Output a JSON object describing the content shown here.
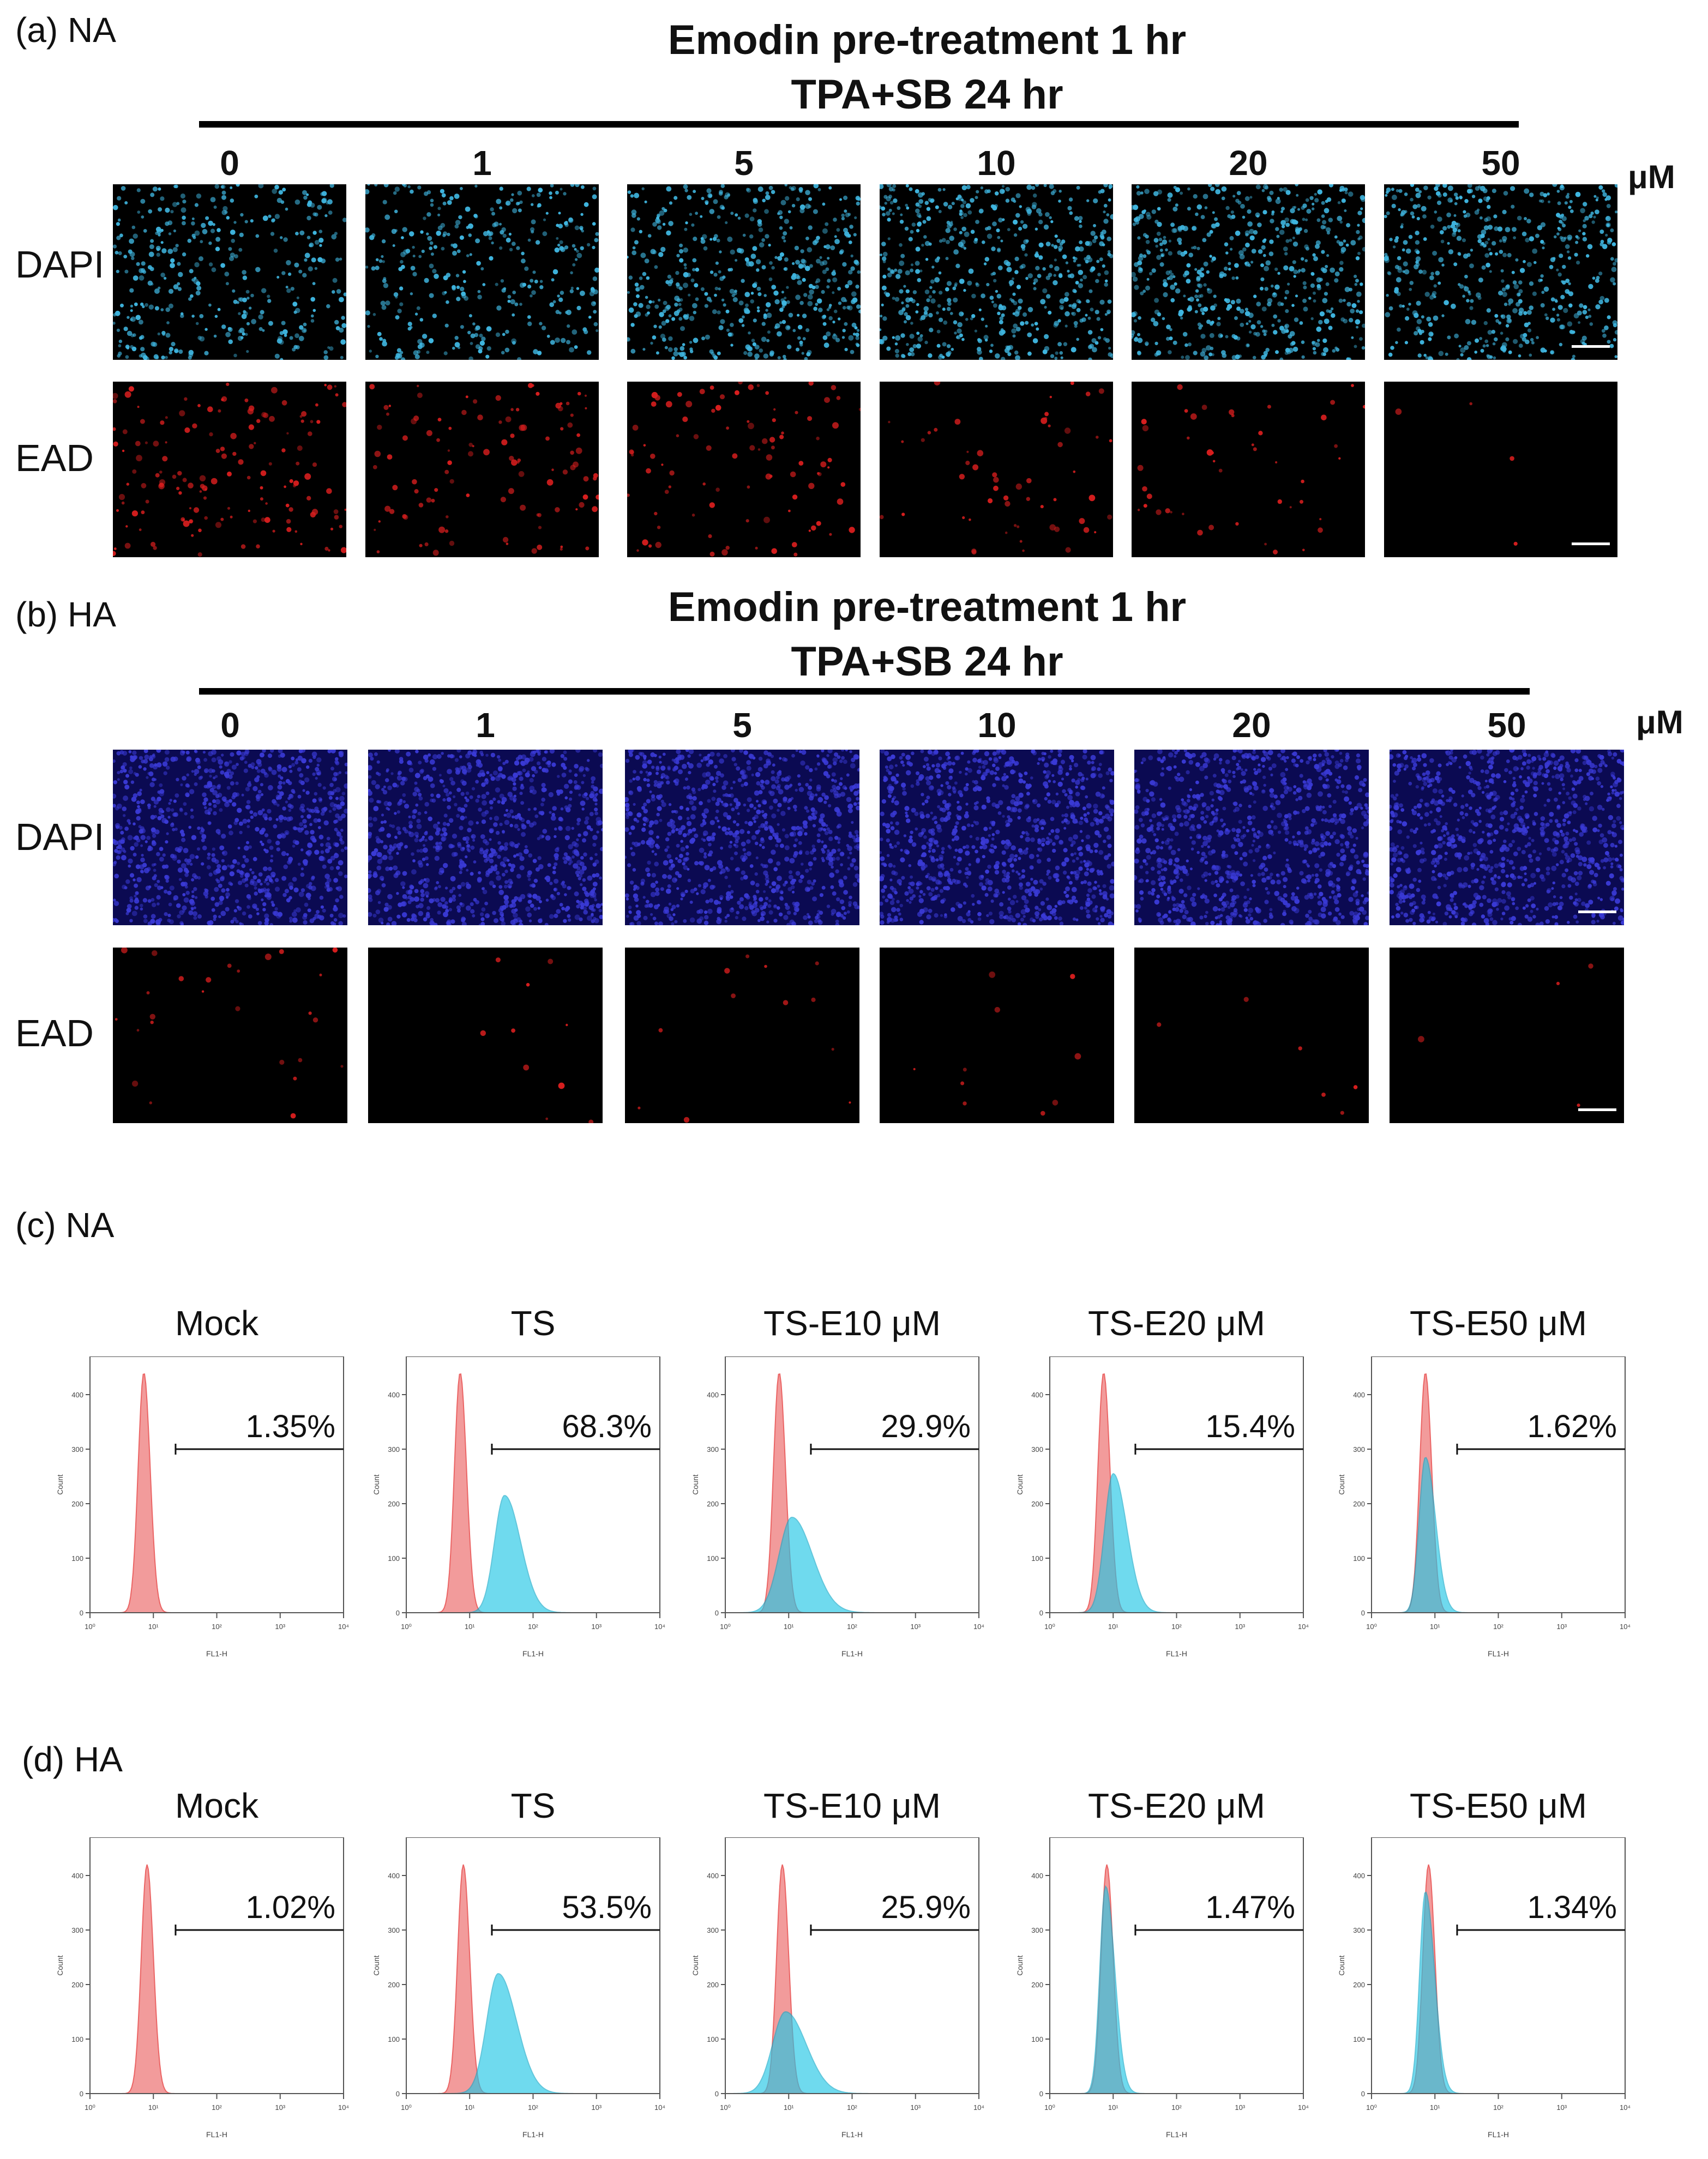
{
  "figure": {
    "panels": {
      "a": {
        "label": "(a) NA",
        "header_line1": "Emodin pre-treatment 1 hr",
        "header_line2": "TPA+SB 24 hr"
      },
      "b": {
        "label": "(b) HA",
        "header_line1": "Emodin pre-treatment 1 hr",
        "header_line2": "TPA+SB 24 hr"
      },
      "c": {
        "label": "(c) NA"
      },
      "d": {
        "label": "(d) HA"
      }
    },
    "concentrations": [
      "0",
      "1",
      "5",
      "10",
      "20",
      "50"
    ],
    "unit": "μM",
    "row_labels": {
      "dapi": "DAPI",
      "ead": "EAD"
    },
    "colors": {
      "dapi_na": "#3fb6e0",
      "dapi_ha": "#3a3ad6",
      "ead": "#d81e1e",
      "mock_fill": "#f08a8a",
      "mock_stroke": "#e84b4b",
      "treated_fill": "#23c7e6",
      "overlap_fill": "#5b8fb0",
      "gate_line": "#111111"
    },
    "flow_axis": {
      "x_label": "FL1-H",
      "y_label": "Count",
      "x_ticks": [
        "10⁰",
        "10¹",
        "10²",
        "10³",
        "10⁴"
      ],
      "y_ticks": [
        "0",
        "100",
        "200",
        "300",
        "400"
      ]
    },
    "flow_titles": [
      "Mock",
      "TS",
      "TS-E10 μM",
      "TS-E20 μM",
      "TS-E50 μM"
    ]
  },
  "chart_data": [
    {
      "type": "histogram",
      "panel": "c",
      "title": "(c) NA",
      "xlabel": "FL1-H",
      "ylabel": "Count",
      "xscale": "log",
      "xlim": [
        1,
        10000
      ],
      "ylim": [
        0,
        450
      ],
      "plots": [
        {
          "title": "Mock",
          "gate_percent": "1.35%",
          "mock_peak_log": 0.85,
          "mock_peak_count": 440,
          "treated": null
        },
        {
          "title": "TS",
          "gate_percent": "68.3%",
          "mock_peak_log": 0.85,
          "mock_peak_count": 440,
          "treated": {
            "peak_log": 1.55,
            "peak_count": 215,
            "spread": 0.35
          }
        },
        {
          "title": "TS-E10 μM",
          "gate_percent": "29.9%",
          "mock_peak_log": 0.85,
          "mock_peak_count": 440,
          "treated": {
            "peak_log": 1.05,
            "peak_count": 175,
            "spread": 0.45
          }
        },
        {
          "title": "TS-E20 μM",
          "gate_percent": "15.4%",
          "mock_peak_log": 0.85,
          "mock_peak_count": 440,
          "treated": {
            "peak_log": 1.0,
            "peak_count": 255,
            "spread": 0.3
          }
        },
        {
          "title": "TS-E50 μM",
          "gate_percent": "1.62%",
          "mock_peak_log": 0.85,
          "mock_peak_count": 440,
          "treated": {
            "peak_log": 0.85,
            "peak_count": 285,
            "spread": 0.22
          }
        }
      ]
    },
    {
      "type": "histogram",
      "panel": "d",
      "title": "(d) HA",
      "xlabel": "FL1-H",
      "ylabel": "Count",
      "xscale": "log",
      "xlim": [
        1,
        10000
      ],
      "ylim": [
        0,
        450
      ],
      "plots": [
        {
          "title": "Mock",
          "gate_percent": "1.02%",
          "mock_peak_log": 0.9,
          "mock_peak_count": 420,
          "treated": null
        },
        {
          "title": "TS",
          "gate_percent": "53.5%",
          "mock_peak_log": 0.9,
          "mock_peak_count": 420,
          "treated": {
            "peak_log": 1.45,
            "peak_count": 220,
            "spread": 0.4
          }
        },
        {
          "title": "TS-E10 μM",
          "gate_percent": "25.9%",
          "mock_peak_log": 0.9,
          "mock_peak_count": 420,
          "treated": {
            "peak_log": 0.95,
            "peak_count": 150,
            "spread": 0.45
          }
        },
        {
          "title": "TS-E20 μM",
          "gate_percent": "1.47%",
          "mock_peak_log": 0.9,
          "mock_peak_count": 420,
          "treated": {
            "peak_log": 0.88,
            "peak_count": 380,
            "spread": 0.2
          }
        },
        {
          "title": "TS-E50 μM",
          "gate_percent": "1.34%",
          "mock_peak_log": 0.9,
          "mock_peak_count": 420,
          "treated": {
            "peak_log": 0.85,
            "peak_count": 370,
            "spread": 0.2
          }
        }
      ]
    }
  ]
}
